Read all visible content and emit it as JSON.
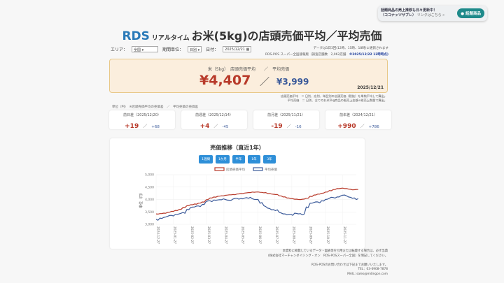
{
  "promo": {
    "line1": "話題商品の売上推移も日々更新中！",
    "line2": "（ココナッツサブレ）",
    "link": "リンクはこちら→",
    "button": "話題商品"
  },
  "header": {
    "brand": "RDS",
    "realtime": "リアルタイム",
    "title": "お米(5kg)の店頭売価平均／平均売価"
  },
  "controls": {
    "area_label": "エリア：",
    "area_value": "全国",
    "period_label": "期間単位：",
    "period_value": "日別",
    "date_label": "日付：",
    "date_value": "2025/12/21"
  },
  "notes": {
    "update": "データは1日3回(12時、15時、18時)に更新されます",
    "source": "RDS-POS スーパー全国速報版（調査店舗数　2,062店舗　",
    "timestamp": "※2025/12/22 12時時点)"
  },
  "hero": {
    "label_a": "米（5kg）　店頭売価平均",
    "sep": "／",
    "label_b": "平均売価",
    "value_a": "¥4,407",
    "value_b": "¥3,999",
    "date": "2025/12/21"
  },
  "definitions": [
    "店頭売価平均　＝ 日別、店別、単品別の店頭売価（税抜）を単純平均して算出。",
    "平均売価　＝ 日別、全てのお米5kg商品の販売上金額÷総売上数量で算出。"
  ],
  "unit_note": "単位（円）　※店頭売価平均の売価差　／　平均売価の売価差",
  "cards": [
    {
      "label": "前日差（2025/12/20）",
      "a": "+19",
      "b": "+68"
    },
    {
      "label": "前週差（2025/12/14）",
      "a": "+4",
      "b": "-45"
    },
    {
      "label": "前月差（2025/11/21）",
      "a": "-19",
      "b": "-16"
    },
    {
      "label": "前年差（2024/12/21）",
      "a": "+990",
      "b": "+786"
    }
  ],
  "range_buttons": [
    "1週間",
    "1か月",
    "半年",
    "1年",
    "3年"
  ],
  "footer": [
    "本資料に掲載しているデータ・図表等を引用または転載する場合は、必ず出典",
    "(株式会社マーチャンダイジング・オン　RDS-POSスーパー全国）を明記してください。",
    "",
    "RDS-POSのお問い合わせは下記までお願いいたします。",
    "TEL：03-6908-7878",
    "MAIL: sales@mdingon.com"
  ],
  "colors": {
    "series_a": "#b83a2a",
    "series_b": "#3b5a9a",
    "accent": "#2e8fd8"
  },
  "chart_data": {
    "type": "line",
    "title": "売価推移（直近1年）",
    "ylabel": "単位（円）",
    "ylim": [
      3000,
      5000
    ],
    "yticks": [
      3000,
      3500,
      4000,
      4500,
      5000
    ],
    "grid": true,
    "legend": "top",
    "xticks": [
      "2024-12-27",
      "2025-01-27",
      "2025-02-27",
      "2025-03-27",
      "2025-04-27",
      "2025-05-27",
      "2025-06-27",
      "2025-07-27",
      "2025-08-27",
      "2025-09-27",
      "2025-10-27",
      "2025-11-27"
    ],
    "series": [
      {
        "name": "店頭売価平均",
        "values": [
          3420,
          3430,
          3450,
          3480,
          3520,
          3560,
          3600,
          3680,
          3750,
          3790,
          3820,
          3850,
          3900,
          3990,
          4060,
          4100,
          4130,
          4150,
          4170,
          4190,
          4200,
          4220,
          4240,
          4260,
          4280,
          4300,
          4300,
          4290,
          4270,
          4240,
          4220,
          4200,
          4150,
          4100,
          4060,
          4040,
          4010,
          4000,
          4010,
          4050,
          4130,
          4180,
          4220,
          4250,
          4300,
          4360,
          4400,
          4440,
          4450,
          4440,
          4420,
          4390,
          4407
        ]
      },
      {
        "name": "平均売価",
        "values": [
          3200,
          3250,
          3280,
          3320,
          3360,
          3400,
          3420,
          3480,
          3600,
          3680,
          3700,
          3740,
          3800,
          3920,
          3950,
          3980,
          3980,
          3990,
          4000,
          3970,
          4020,
          4050,
          4040,
          4060,
          4050,
          4030,
          4000,
          3850,
          3750,
          3650,
          3580,
          3550,
          3480,
          3420,
          3380,
          3400,
          3450,
          3420,
          3380,
          3700,
          3850,
          3880,
          3900,
          3950,
          4000,
          4050,
          4080,
          4100,
          4150,
          4180,
          4100,
          4050,
          3999
        ]
      }
    ]
  }
}
